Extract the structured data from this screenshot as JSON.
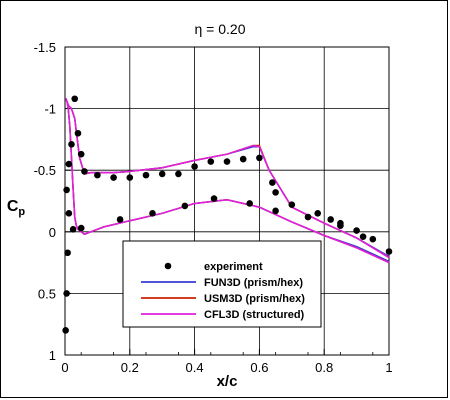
{
  "chart_data": {
    "type": "line",
    "title": "η = 0.20",
    "xlabel": "x/c",
    "ylabel": "C",
    "ylabel_sub": "p",
    "xlim": [
      0,
      1
    ],
    "ylim": [
      1,
      -1.5
    ],
    "y_inverted": true,
    "grid": true,
    "x_ticks": [
      0,
      0.2,
      0.4,
      0.6,
      0.8,
      1
    ],
    "x_tick_labels": [
      "0",
      "0.2",
      "0.4",
      "0.6",
      "0.8",
      "1"
    ],
    "y_ticks": [
      -1.5,
      -1,
      -0.5,
      0,
      0.5,
      1
    ],
    "y_tick_labels": [
      "-1.5",
      "-1",
      "-0.5",
      "0",
      "0.5",
      "1"
    ],
    "legend_position": "lower-center",
    "series": [
      {
        "name": "experiment",
        "kind": "scatter",
        "color": "#000000",
        "x": [
          0.002,
          0.005,
          0.008,
          0.012,
          0.02,
          0.03,
          0.04,
          0.05,
          0.06,
          0.1,
          0.15,
          0.2,
          0.25,
          0.3,
          0.35,
          0.4,
          0.45,
          0.5,
          0.55,
          0.6,
          0.64,
          0.65,
          0.7,
          0.78,
          0.82,
          0.85,
          0.9,
          0.95,
          1.0,
          0.005,
          0.012,
          0.025,
          0.05,
          0.17,
          0.27,
          0.37,
          0.46,
          0.57,
          0.65,
          0.75,
          0.85,
          0.92
        ],
        "y": [
          0.8,
          0.5,
          0.17,
          -0.55,
          -0.71,
          -1.08,
          -0.8,
          -0.63,
          -0.49,
          -0.46,
          -0.44,
          -0.44,
          -0.46,
          -0.47,
          -0.47,
          -0.53,
          -0.57,
          -0.57,
          -0.59,
          -0.6,
          -0.4,
          -0.32,
          -0.22,
          -0.15,
          -0.1,
          -0.07,
          -0.01,
          0.06,
          0.16,
          -0.34,
          -0.15,
          -0.02,
          -0.03,
          -0.1,
          -0.15,
          -0.21,
          -0.27,
          -0.23,
          -0.17,
          -0.12,
          -0.05,
          0.04
        ]
      },
      {
        "name": "FUN3D (prism/hex)",
        "kind": "line",
        "color": "#3a3ad6",
        "x": [
          1.0,
          0.9,
          0.8,
          0.7,
          0.6,
          0.5,
          0.4,
          0.3,
          0.2,
          0.12,
          0.08,
          0.06,
          0.05,
          0.04,
          0.035,
          0.03,
          0.025,
          0.02,
          0.015,
          0.01,
          0.006,
          0.004,
          0.003,
          0.004,
          0.007,
          0.012,
          0.02,
          0.03,
          0.045,
          0.06,
          0.08,
          0.1,
          0.15,
          0.2,
          0.3,
          0.4,
          0.5,
          0.58,
          0.6,
          0.63,
          0.7,
          0.8,
          0.9,
          1.0
        ],
        "y": [
          0.24,
          0.12,
          0.03,
          -0.08,
          -0.2,
          -0.26,
          -0.23,
          -0.15,
          -0.09,
          -0.04,
          0.0,
          0.02,
          0.0,
          -0.02,
          -0.05,
          -0.12,
          -0.35,
          -0.6,
          -0.85,
          -1.0,
          -1.06,
          -1.07,
          -1.08,
          -1.07,
          -1.05,
          -1.02,
          -1.0,
          -0.92,
          -0.6,
          -0.47,
          -0.48,
          -0.48,
          -0.48,
          -0.49,
          -0.52,
          -0.58,
          -0.63,
          -0.69,
          -0.69,
          -0.5,
          -0.2,
          -0.07,
          0.05,
          0.2
        ]
      },
      {
        "name": "USM3D (prism/hex)",
        "kind": "line",
        "color": "#cc2200",
        "x": [
          1.0,
          0.9,
          0.8,
          0.7,
          0.6,
          0.5,
          0.4,
          0.3,
          0.2,
          0.12,
          0.08,
          0.06,
          0.05,
          0.04,
          0.035,
          0.03,
          0.025,
          0.02,
          0.015,
          0.01,
          0.006,
          0.004,
          0.003,
          0.004,
          0.007,
          0.012,
          0.02,
          0.03,
          0.045,
          0.06,
          0.08,
          0.1,
          0.15,
          0.2,
          0.3,
          0.4,
          0.5,
          0.58,
          0.6,
          0.63,
          0.7,
          0.8,
          0.9,
          1.0
        ],
        "y": [
          0.25,
          0.13,
          0.03,
          -0.08,
          -0.2,
          -0.26,
          -0.23,
          -0.15,
          -0.09,
          -0.04,
          0.0,
          0.02,
          0.0,
          -0.02,
          -0.05,
          -0.12,
          -0.35,
          -0.6,
          -0.85,
          -1.0,
          -1.06,
          -1.07,
          -1.08,
          -1.07,
          -1.05,
          -1.02,
          -1.0,
          -0.92,
          -0.6,
          -0.47,
          -0.48,
          -0.48,
          -0.48,
          -0.49,
          -0.52,
          -0.58,
          -0.63,
          -0.7,
          -0.7,
          -0.5,
          -0.2,
          -0.07,
          0.05,
          0.21
        ]
      },
      {
        "name": "CFL3D (structured)",
        "kind": "line",
        "color": "#e020e0",
        "x": [
          1.0,
          0.9,
          0.8,
          0.7,
          0.6,
          0.5,
          0.4,
          0.3,
          0.2,
          0.12,
          0.08,
          0.06,
          0.05,
          0.04,
          0.035,
          0.03,
          0.025,
          0.02,
          0.015,
          0.01,
          0.006,
          0.004,
          0.003,
          0.004,
          0.007,
          0.012,
          0.02,
          0.03,
          0.045,
          0.06,
          0.08,
          0.1,
          0.15,
          0.2,
          0.3,
          0.4,
          0.5,
          0.58,
          0.6,
          0.63,
          0.7,
          0.8,
          0.9,
          1.0
        ],
        "y": [
          0.25,
          0.13,
          0.03,
          -0.08,
          -0.2,
          -0.26,
          -0.23,
          -0.15,
          -0.09,
          -0.04,
          0.0,
          0.02,
          0.0,
          -0.02,
          -0.05,
          -0.12,
          -0.35,
          -0.6,
          -0.85,
          -1.0,
          -1.06,
          -1.07,
          -1.08,
          -1.07,
          -1.05,
          -1.02,
          -1.0,
          -0.92,
          -0.6,
          -0.47,
          -0.48,
          -0.48,
          -0.48,
          -0.49,
          -0.52,
          -0.58,
          -0.63,
          -0.7,
          -0.69,
          -0.5,
          -0.2,
          -0.07,
          0.05,
          0.21
        ]
      }
    ]
  }
}
